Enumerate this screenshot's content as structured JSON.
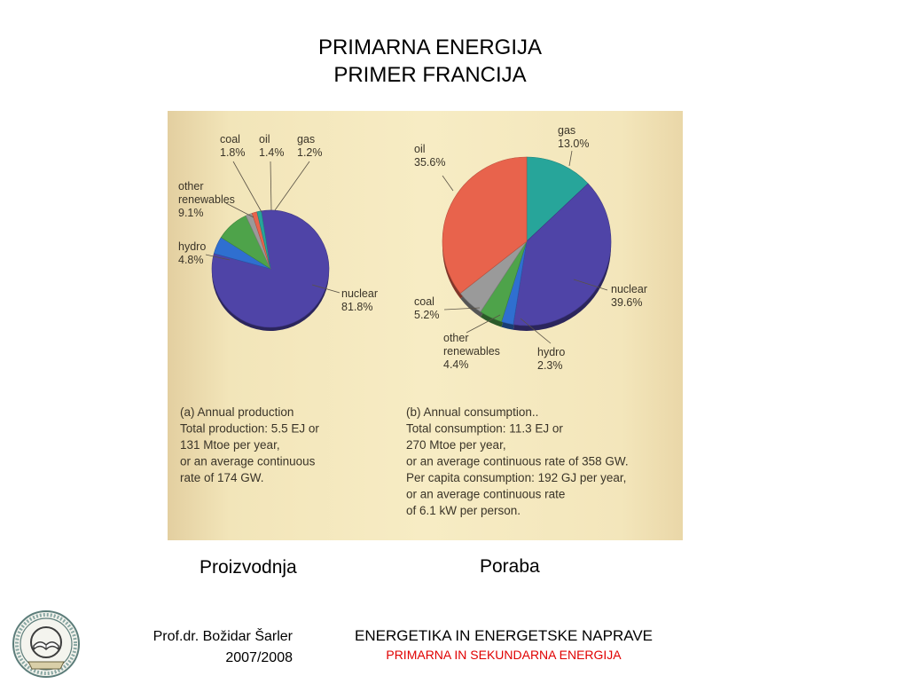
{
  "slide": {
    "title_line1": "PRIMARNA ENERGIJA",
    "title_line2": "PRIMER FRANCIJA",
    "label_left": "Proizvodnja",
    "label_right": "Poraba",
    "author": "Prof.dr. Božidar Šarler",
    "year": "2007/2008",
    "course_title": "ENERGETIKA IN ENERGETSKE NAPRAVE",
    "course_subtitle": "PRIMARNA IN SEKUNDARNA ENERGIJA",
    "logo_icon": "university-seal-icon"
  },
  "chart_data": [
    {
      "type": "pie",
      "caption": [
        "(a) Annual production",
        "Total production: 5.5 EJ or",
        "131 Mtoe per year,",
        "or an average continuous",
        "rate of 174 GW."
      ],
      "slices": [
        {
          "label": "nuclear",
          "value": 81.8,
          "value_label": "81.8%",
          "color": "#4f44a7"
        },
        {
          "label": "hydro",
          "value": 4.8,
          "value_label": "4.8%",
          "color": "#2f6fd0"
        },
        {
          "label": "other renewables",
          "label_lines": [
            "other",
            "renewables"
          ],
          "value": 9.1,
          "value_label": "9.1%",
          "color": "#4ea34a"
        },
        {
          "label": "coal",
          "value": 1.8,
          "value_label": "1.8%",
          "color": "#9a9a9a"
        },
        {
          "label": "oil",
          "value": 1.4,
          "value_label": "1.4%",
          "color": "#e8634c"
        },
        {
          "label": "gas",
          "value": 1.2,
          "value_label": "1.2%",
          "color": "#27a59a"
        }
      ]
    },
    {
      "type": "pie",
      "caption": [
        "(b) Annual consumption..",
        "Total consumption: 11.3 EJ or",
        "270 Mtoe per year,",
        "or an average continuous rate of 358 GW.",
        "Per capita consumption: 192 GJ per year,",
        "or an average continuous rate",
        "of 6.1 kW per person."
      ],
      "slices": [
        {
          "label": "gas",
          "value": 13.0,
          "value_label": "13.0%",
          "color": "#27a59a"
        },
        {
          "label": "nuclear",
          "value": 39.6,
          "value_label": "39.6%",
          "color": "#4f44a7"
        },
        {
          "label": "hydro",
          "value": 2.3,
          "value_label": "2.3%",
          "color": "#2f6fd0"
        },
        {
          "label": "other renewables",
          "label_lines": [
            "other",
            "renewables"
          ],
          "value": 4.4,
          "value_label": "4.4%",
          "color": "#4ea34a"
        },
        {
          "label": "coal",
          "value": 5.2,
          "value_label": "5.2%",
          "color": "#9a9a9a"
        },
        {
          "label": "oil",
          "value": 35.6,
          "value_label": "35.6%",
          "color": "#e8634c"
        }
      ]
    }
  ]
}
